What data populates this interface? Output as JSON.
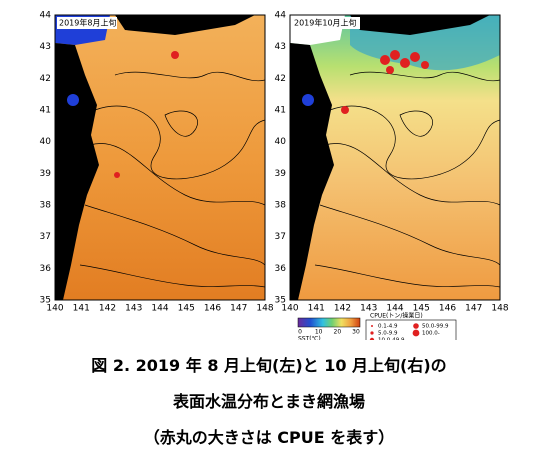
{
  "panels": [
    {
      "label": "2019年8月上旬",
      "xticks": [
        140,
        141,
        142,
        143,
        144,
        145,
        146,
        147,
        148
      ],
      "yticks": [
        35,
        36,
        37,
        38,
        39,
        40,
        41,
        42,
        43,
        44
      ]
    },
    {
      "label": "2019年10月上旬",
      "xticks": [
        140,
        141,
        142,
        143,
        144,
        145,
        146,
        147,
        148
      ],
      "yticks": [
        35,
        36,
        37,
        38,
        39,
        40,
        41,
        42,
        43,
        44
      ]
    }
  ],
  "colorbar": {
    "ticks": [
      0,
      10,
      20,
      30
    ],
    "label": "SST(℃)"
  },
  "legend": {
    "title": "CPUE(トン/操業日)",
    "items": [
      "0.1-4.9",
      "5.0-9.9",
      "10.0-49.9",
      "50.0-99.9",
      "100.0-"
    ]
  },
  "caption": [
    "図 2.  2019 年 8 月上旬(左)と 10 月上旬(右)の",
    "表面水温分布とまき網漁場",
    "（赤丸の大きさは CPUE を表す）"
  ]
}
